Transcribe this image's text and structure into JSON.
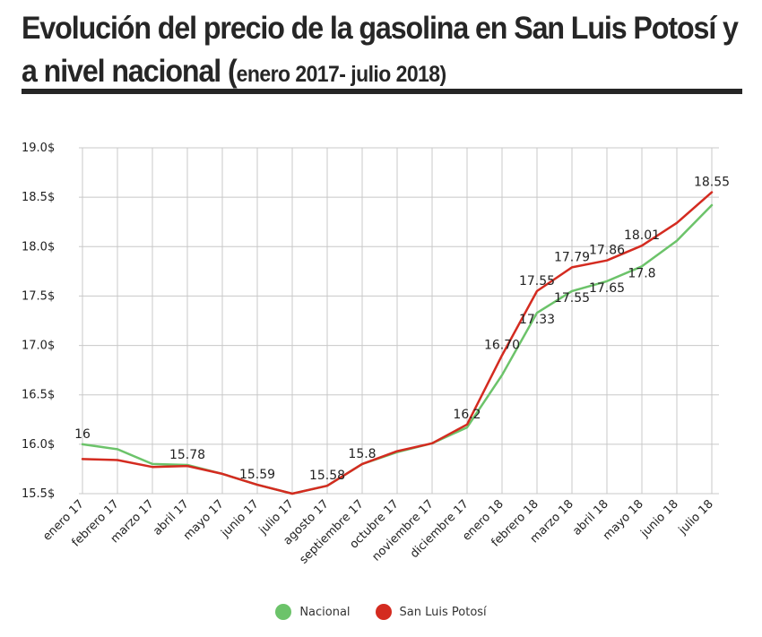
{
  "title": {
    "main": "Evolución del precio de la gasolina en San Luis Potosí y",
    "line2": "a nivel nacional ",
    "paren_open": "(",
    "range": "enero 2017- julio 2018)"
  },
  "colors": {
    "nacional": "#6cc36a",
    "slp": "#d42b20",
    "grid": "#c8c8c8",
    "text": "#222222"
  },
  "chart_data": {
    "type": "line",
    "categories": [
      "enero 17",
      "febrero 17",
      "marzo 17",
      "abril 17",
      "mayo 17",
      "junio 17",
      "julio 17",
      "agosto 17",
      "septiembre 17",
      "octubre 17",
      "noviembre 17",
      "diciembre 17",
      "enero 18",
      "febrero 18",
      "marzo 18",
      "abril 18",
      "mayo 18",
      "junio 18",
      "julio 18"
    ],
    "ylim": [
      15.5,
      19.0
    ],
    "yticks": [
      15.5,
      16.0,
      16.5,
      17.0,
      17.5,
      18.0,
      18.5,
      19.0
    ],
    "ytick_labels": [
      "15.5$",
      "16.0$",
      "16.5$",
      "17.0$",
      "17.5$",
      "18.0$",
      "18.5$",
      "19.0$"
    ],
    "grid": true,
    "legend_position": "bottom",
    "series": [
      {
        "name": "Nacional",
        "values": [
          16.0,
          15.95,
          15.8,
          15.79,
          15.7,
          15.59,
          15.5,
          15.58,
          15.8,
          15.92,
          16.01,
          16.17,
          16.7,
          17.33,
          17.55,
          17.65,
          17.8,
          18.06,
          18.42
        ]
      },
      {
        "name": "San Luis Potosí",
        "values": [
          15.85,
          15.84,
          15.77,
          15.78,
          15.7,
          15.59,
          15.5,
          15.58,
          15.8,
          15.93,
          16.01,
          16.2,
          16.9,
          17.55,
          17.79,
          17.86,
          18.01,
          18.24,
          18.55
        ]
      }
    ],
    "annotations": [
      {
        "index": 0,
        "text": "16",
        "pos": "above"
      },
      {
        "index": 3,
        "text": "15.78",
        "pos": "above"
      },
      {
        "index": 5,
        "text": "15.59",
        "pos": "above"
      },
      {
        "index": 7,
        "text": "15.58",
        "pos": "above"
      },
      {
        "index": 8,
        "text": "15.8",
        "pos": "above"
      },
      {
        "index": 11,
        "text": "16.2",
        "pos": "above"
      },
      {
        "index": 12,
        "text": "16.70",
        "pos": "above"
      },
      {
        "index": 13,
        "text": "17.55",
        "pos": "above"
      },
      {
        "index": 13,
        "text": "17.33",
        "pos": "below"
      },
      {
        "index": 14,
        "text": "17.79",
        "pos": "above"
      },
      {
        "index": 14,
        "text": "17.55",
        "pos": "below"
      },
      {
        "index": 15,
        "text": "17.86",
        "pos": "above"
      },
      {
        "index": 15,
        "text": "17.65",
        "pos": "below"
      },
      {
        "index": 16,
        "text": "18.01",
        "pos": "above"
      },
      {
        "index": 16,
        "text": "17.8",
        "pos": "below"
      },
      {
        "index": 18,
        "text": "18.55",
        "pos": "above"
      }
    ]
  }
}
